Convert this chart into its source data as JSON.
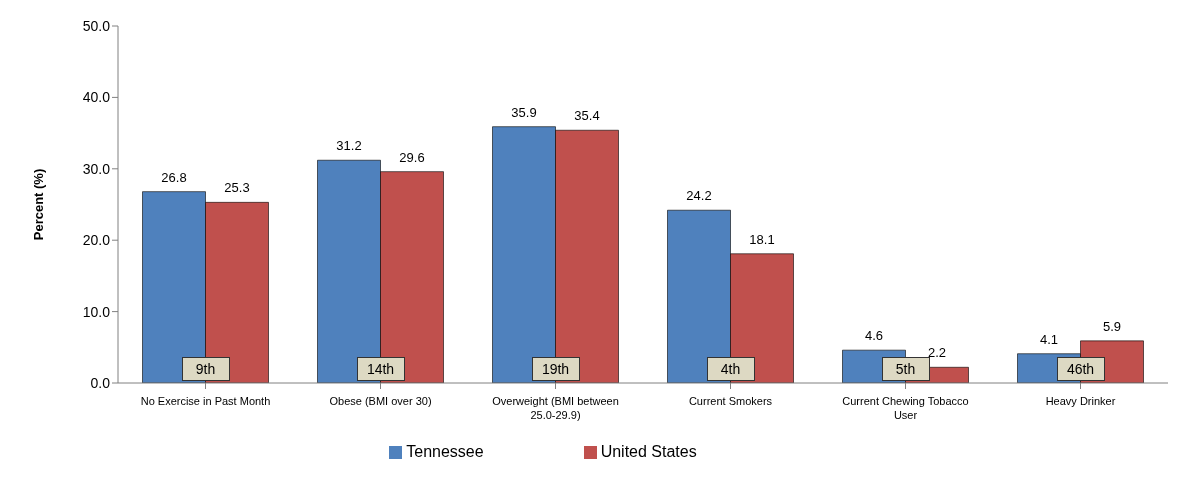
{
  "chart_data": {
    "type": "bar",
    "ylabel": "Percent (%)",
    "categories": [
      "No Exercise in Past Month",
      "Obese (BMI over 30)",
      "Overweight (BMI between 25.0-29.9)",
      "Current Smokers",
      "Current Chewing Tobacco User",
      "Heavy Drinker"
    ],
    "series": [
      {
        "name": "Tennessee",
        "color": "#4f81bd",
        "values": [
          26.8,
          31.2,
          35.9,
          24.2,
          4.6,
          4.1
        ]
      },
      {
        "name": "United States",
        "color": "#c0504d",
        "values": [
          25.3,
          29.6,
          35.4,
          18.1,
          2.2,
          5.9
        ]
      }
    ],
    "ylim": [
      0,
      50
    ],
    "yticks": [
      {
        "value": 0,
        "label": "0.0"
      },
      {
        "value": 10,
        "label": "10.0"
      },
      {
        "value": 20,
        "label": "20.0"
      },
      {
        "value": 30,
        "label": "30.0"
      },
      {
        "value": 40,
        "label": "40.0"
      },
      {
        "value": 50,
        "label": "50.0"
      }
    ],
    "data_labels": true,
    "legend": "bottom",
    "grid": false,
    "annotations": [
      "9th",
      "14th",
      "19th",
      "4th",
      "5th",
      "46th"
    ]
  }
}
